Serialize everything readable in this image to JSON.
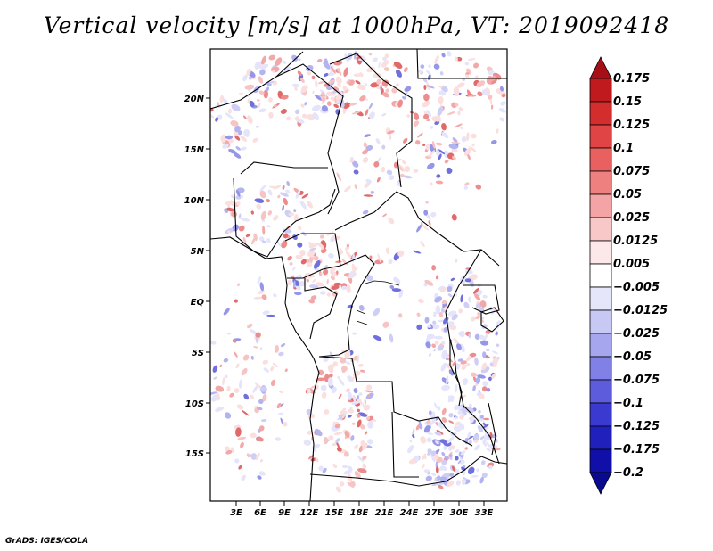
{
  "title": "Vertical velocity [m/s] at 1000hPa, VT: 2019092418",
  "footer": "GrADS: IGES/COLA",
  "map": {
    "lat_labels": [
      "20N",
      "15N",
      "10N",
      "5N",
      "EQ",
      "5S",
      "10S",
      "15S"
    ],
    "lon_labels": [
      "3E",
      "6E",
      "9E",
      "12E",
      "15E",
      "18E",
      "21E",
      "24E",
      "27E",
      "30E",
      "33E"
    ]
  },
  "colorbar": {
    "labels": [
      "0.175",
      "0.15",
      "0.125",
      "0.1",
      "0.075",
      "0.05",
      "0.025",
      "0.0125",
      "0.005",
      "−0.005",
      "−0.0125",
      "−0.025",
      "−0.05",
      "−0.075",
      "−0.1",
      "−0.125",
      "−0.175",
      "−0.2"
    ],
    "colors": [
      "#a50f15",
      "#c0191e",
      "#d42d2d",
      "#e04444",
      "#e86060",
      "#ef8080",
      "#f4a4a4",
      "#f8c8c8",
      "#fce8e8",
      "#ffffff",
      "#e6e6fa",
      "#c8c8f4",
      "#a6a6ee",
      "#8080e6",
      "#5c5cdc",
      "#3a3ad0",
      "#2020bc",
      "#1010a8",
      "#0a0a90"
    ]
  }
}
